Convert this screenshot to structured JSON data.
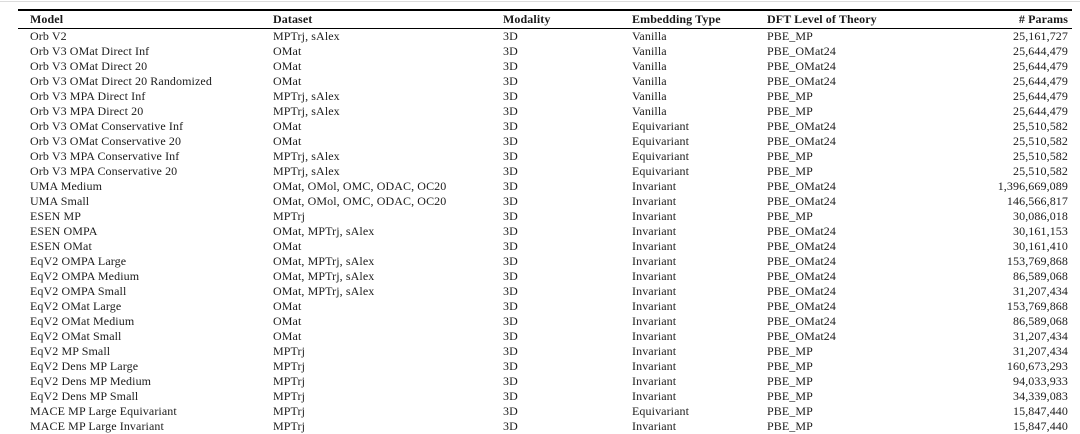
{
  "page": {
    "background_color": "#ffffff",
    "top_edge_line_color": "#dcdcdc",
    "rule_color": "#000000",
    "text_color": "#1b1b1b"
  },
  "table": {
    "columns": [
      {
        "key": "model",
        "label": "Model"
      },
      {
        "key": "dataset",
        "label": "Dataset"
      },
      {
        "key": "modality",
        "label": "Modality"
      },
      {
        "key": "embedding",
        "label": "Embedding Type"
      },
      {
        "key": "dft",
        "label": "DFT Level of Theory"
      },
      {
        "key": "params",
        "label": "# Params"
      }
    ],
    "rows": [
      [
        "Orb V2",
        "MPTrj, sAlex",
        "3D",
        "Vanilla",
        "PBE_MP",
        "25,161,727"
      ],
      [
        "Orb V3 OMat Direct Inf",
        "OMat",
        "3D",
        "Vanilla",
        "PBE_OMat24",
        "25,644,479"
      ],
      [
        "Orb V3 OMat Direct 20",
        "OMat",
        "3D",
        "Vanilla",
        "PBE_OMat24",
        "25,644,479"
      ],
      [
        "Orb V3 OMat Direct 20 Randomized",
        "OMat",
        "3D",
        "Vanilla",
        "PBE_OMat24",
        "25,644,479"
      ],
      [
        "Orb V3 MPA Direct Inf",
        "MPTrj, sAlex",
        "3D",
        "Vanilla",
        "PBE_MP",
        "25,644,479"
      ],
      [
        "Orb V3 MPA Direct 20",
        "MPTrj, sAlex",
        "3D",
        "Vanilla",
        "PBE_MP",
        "25,644,479"
      ],
      [
        "Orb V3 OMat Conservative Inf",
        "OMat",
        "3D",
        "Equivariant",
        "PBE_OMat24",
        "25,510,582"
      ],
      [
        "Orb V3 OMat Conservative 20",
        "OMat",
        "3D",
        "Equivariant",
        "PBE_OMat24",
        "25,510,582"
      ],
      [
        "Orb V3 MPA Conservative Inf",
        "MPTrj, sAlex",
        "3D",
        "Equivariant",
        "PBE_MP",
        "25,510,582"
      ],
      [
        "Orb V3 MPA Conservative 20",
        "MPTrj, sAlex",
        "3D",
        "Equivariant",
        "PBE_MP",
        "25,510,582"
      ],
      [
        "UMA Medium",
        "OMat, OMol, OMC, ODAC, OC20",
        "3D",
        "Invariant",
        "PBE_OMat24",
        "1,396,669,089"
      ],
      [
        "UMA Small",
        "OMat, OMol, OMC, ODAC, OC20",
        "3D",
        "Invariant",
        "PBE_OMat24",
        "146,566,817"
      ],
      [
        "ESEN MP",
        "MPTrj",
        "3D",
        "Invariant",
        "PBE_MP",
        "30,086,018"
      ],
      [
        "ESEN OMPA",
        "OMat, MPTrj, sAlex",
        "3D",
        "Invariant",
        "PBE_OMat24",
        "30,161,153"
      ],
      [
        "ESEN OMat",
        "OMat",
        "3D",
        "Invariant",
        "PBE_OMat24",
        "30,161,410"
      ],
      [
        "EqV2 OMPA Large",
        "OMat, MPTrj, sAlex",
        "3D",
        "Invariant",
        "PBE_OMat24",
        "153,769,868"
      ],
      [
        "EqV2 OMPA Medium",
        "OMat, MPTrj, sAlex",
        "3D",
        "Invariant",
        "PBE_OMat24",
        "86,589,068"
      ],
      [
        "EqV2 OMPA Small",
        "OMat, MPTrj, sAlex",
        "3D",
        "Invariant",
        "PBE_OMat24",
        "31,207,434"
      ],
      [
        "EqV2 OMat Large",
        "OMat",
        "3D",
        "Invariant",
        "PBE_OMat24",
        "153,769,868"
      ],
      [
        "EqV2 OMat Medium",
        "OMat",
        "3D",
        "Invariant",
        "PBE_OMat24",
        "86,589,068"
      ],
      [
        "EqV2 OMat Small",
        "OMat",
        "3D",
        "Invariant",
        "PBE_OMat24",
        "31,207,434"
      ],
      [
        "EqV2 MP Small",
        "MPTrj",
        "3D",
        "Invariant",
        "PBE_MP",
        "31,207,434"
      ],
      [
        "EqV2 Dens MP Large",
        "MPTrj",
        "3D",
        "Invariant",
        "PBE_MP",
        "160,673,293"
      ],
      [
        "EqV2 Dens MP Medium",
        "MPTrj",
        "3D",
        "Invariant",
        "PBE_MP",
        "94,033,933"
      ],
      [
        "EqV2 Dens MP Small",
        "MPTrj",
        "3D",
        "Invariant",
        "PBE_MP",
        "34,339,083"
      ],
      [
        "MACE MP Large Equivariant",
        "MPTrj",
        "3D",
        "Equivariant",
        "PBE_MP",
        "15,847,440"
      ],
      [
        "MACE MP Large Invariant",
        "MPTrj",
        "3D",
        "Invariant",
        "PBE_MP",
        "15,847,440"
      ]
    ]
  }
}
